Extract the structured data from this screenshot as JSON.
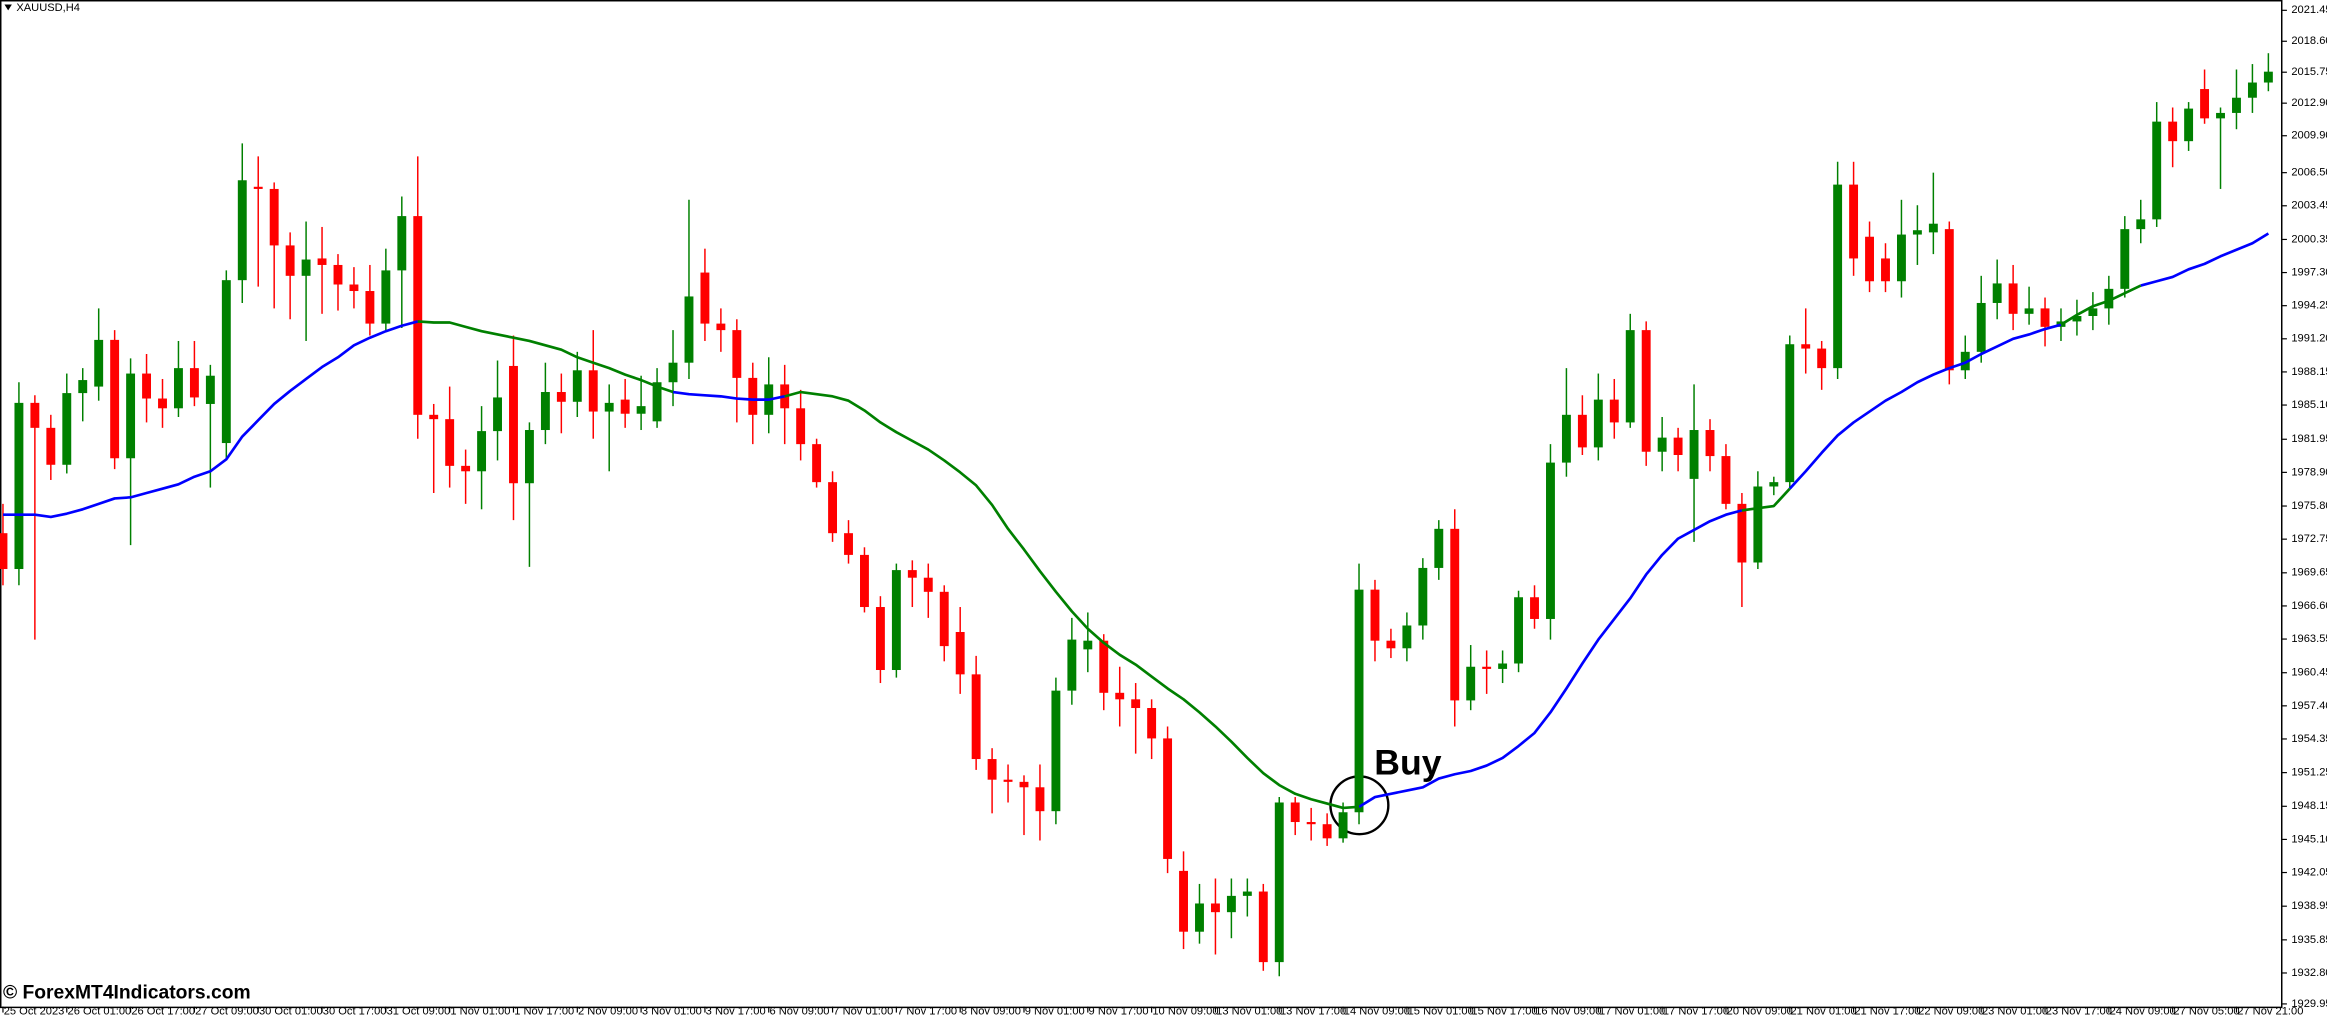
{
  "chart_data": {
    "type": "candlestick",
    "title": "XAUUSD,H4",
    "annotation": "Buy",
    "watermark": "© ForexMT4Indicators.com",
    "up_color": "#008000",
    "down_color": "#ff0000",
    "categories": [
      "25 Oct 2023",
      null,
      null,
      null,
      "26 Oct 01:00",
      null,
      null,
      null,
      "26 Oct 17:00",
      null,
      null,
      null,
      "27 Oct 09:00",
      null,
      null,
      null,
      "30 Oct 01:00",
      null,
      null,
      null,
      "30 Oct 17:00",
      null,
      null,
      null,
      "31 Oct 09:00",
      null,
      null,
      null,
      "1 Nov 01:00",
      null,
      null,
      null,
      "1 Nov 17:00",
      null,
      null,
      null,
      "2 Nov 09:00",
      null,
      null,
      null,
      "3 Nov 01:00",
      null,
      null,
      null,
      "3 Nov 17:00",
      null,
      null,
      null,
      "6 Nov 09:00",
      null,
      null,
      null,
      "7 Nov 01:00",
      null,
      null,
      null,
      "7 Nov 17:00",
      null,
      null,
      null,
      "8 Nov 09:00",
      null,
      null,
      null,
      "9 Nov 01:00",
      null,
      null,
      null,
      "9 Nov 17:00",
      null,
      null,
      null,
      "10 Nov 09:00",
      null,
      null,
      null,
      "13 Nov 01:00",
      null,
      null,
      null,
      "13 Nov 17:00",
      null,
      null,
      null,
      "14 Nov 09:00",
      null,
      null,
      null,
      "15 Nov 01:00",
      null,
      null,
      null,
      "15 Nov 17:00",
      null,
      null,
      null,
      "16 Nov 09:00",
      null,
      null,
      null,
      "17 Nov 01:00",
      null,
      null,
      null,
      "17 Nov 17:00",
      null,
      null,
      null,
      "20 Nov 09:00",
      null,
      null,
      null,
      "21 Nov 01:00",
      null,
      null,
      null,
      "21 Nov 17:00",
      null,
      null,
      null,
      "22 Nov 09:00",
      null,
      null,
      null,
      "23 Nov 01:00",
      null,
      null,
      null,
      "23 Nov 17:00",
      null,
      null,
      null,
      "24 Nov 09:00",
      null,
      null,
      null,
      "27 Nov 05:00",
      null,
      null,
      null,
      "27 Nov 21:00",
      null,
      null
    ],
    "open": [
      1973.3,
      1970.0,
      1985.3,
      1983.0,
      1979.6,
      1986.2,
      1986.8,
      1991.1,
      1980.2,
      1988.0,
      1985.7,
      1984.8,
      1988.5,
      1985.2,
      1981.6,
      1996.6,
      2005.2,
      2005.0,
      1999.8,
      1997.0,
      1998.6,
      1998.0,
      1996.2,
      1995.6,
      1992.6,
      1997.5,
      2002.5,
      1984.2,
      1983.8,
      1979.5,
      1979.0,
      1982.7,
      1988.7,
      1977.9,
      1982.8,
      1986.3,
      1985.4,
      1988.3,
      1984.5,
      1985.6,
      1984.3,
      1983.6,
      1987.2,
      1989.0,
      1997.3,
      1992.6,
      1992.0,
      1987.6,
      1984.2,
      1987.0,
      1984.8,
      1981.5,
      1978.0,
      1973.3,
      1971.3,
      1966.5,
      1960.7,
      1969.9,
      1969.2,
      1967.9,
      1964.2,
      1960.3,
      1952.5,
      1950.6,
      1950.4,
      1949.9,
      1947.7,
      1958.8,
      1962.6,
      1963.4,
      1958.6,
      1958.0,
      1957.2,
      1954.4,
      1942.2,
      1936.6,
      1939.2,
      1938.4,
      1939.9,
      1940.3,
      1933.8,
      1948.5,
      1946.7,
      1946.5,
      1945.2,
      1947.6,
      1968.1,
      1963.4,
      1962.7,
      1964.8,
      1970.1,
      1973.7,
      1957.9,
      1961.0,
      1960.8,
      1961.3,
      1967.4,
      1965.4,
      1979.8,
      1984.2,
      1981.2,
      1985.6,
      1983.5,
      1992.0,
      1980.8,
      1982.1,
      1978.3,
      1982.8,
      1980.4,
      1976.0,
      1970.6,
      1977.6,
      1978.0,
      1990.7,
      1990.3,
      1988.5,
      2005.4,
      2000.6,
      1998.6,
      1996.5,
      2000.8,
      2001.0,
      2001.3,
      1988.3,
      1990.0,
      1994.5,
      1996.3,
      1993.5,
      1994.0,
      1992.3,
      1992.8,
      1993.3,
      1994.0,
      1995.8,
      2001.3,
      2002.2,
      2011.2,
      2009.4,
      2014.2,
      2011.5,
      2012.0,
      2013.4,
      2014.8
    ],
    "high": [
      1976.0,
      1987.2,
      1986.0,
      1984.2,
      1988.0,
      1988.5,
      1994.0,
      1992.0,
      1989.4,
      1989.8,
      1987.5,
      1991.0,
      1991.0,
      1988.8,
      1997.5,
      2009.2,
      2008.0,
      2005.6,
      2001.0,
      2002.0,
      2001.5,
      1999.0,
      1997.8,
      1998.0,
      1999.5,
      2004.3,
      2008.0,
      1985.2,
      1986.8,
      1981.0,
      1985.0,
      1989.2,
      1991.5,
      1983.5,
      1989.0,
      1988.0,
      1990.0,
      1992.0,
      1987.0,
      1987.5,
      1987.8,
      1988.5,
      1992.0,
      2004.0,
      1999.5,
      1994.0,
      1993.0,
      1989.0,
      1989.5,
      1988.8,
      1986.5,
      1982.0,
      1979.0,
      1974.5,
      1972.0,
      1967.5,
      1970.5,
      1970.8,
      1970.5,
      1968.5,
      1966.5,
      1962.0,
      1953.5,
      1952.0,
      1951.0,
      1952.0,
      1960.0,
      1965.5,
      1966.0,
      1964.0,
      1961.0,
      1959.5,
      1958.0,
      1955.5,
      1944.0,
      1941.0,
      1941.5,
      1941.5,
      1941.5,
      1941.0,
      1949.0,
      1949.0,
      1948.0,
      1947.5,
      1948.5,
      1970.5,
      1969.0,
      1964.5,
      1966.0,
      1971.0,
      1974.5,
      1975.5,
      1963.0,
      1962.5,
      1962.5,
      1968.0,
      1968.5,
      1981.5,
      1988.5,
      1986.0,
      1988.0,
      1987.5,
      1993.5,
      1992.8,
      1984.0,
      1983.0,
      1987.0,
      1983.8,
      1981.5,
      1977.0,
      1979.0,
      1978.5,
      1991.5,
      1994.0,
      1991.0,
      2007.5,
      2007.5,
      2002.0,
      2000.0,
      2004.0,
      2003.5,
      2006.5,
      2002.0,
      1991.5,
      1997.0,
      1998.5,
      1998.0,
      1996.0,
      1995.0,
      1994.0,
      1994.8,
      1995.5,
      1997.0,
      2002.5,
      2004.0,
      2013.0,
      2012.5,
      2013.0,
      2016.0,
      2012.5,
      2016.0,
      2016.5,
      2017.5
    ],
    "low": [
      1968.5,
      1968.5,
      1963.5,
      1978.2,
      1978.8,
      1983.6,
      1985.5,
      1979.2,
      1972.2,
      1983.5,
      1983.0,
      1984.0,
      1985.0,
      1977.5,
      1980.0,
      1994.5,
      1996.0,
      1994.0,
      1993.0,
      1991.0,
      1993.5,
      1993.8,
      1994.0,
      1991.5,
      1992.0,
      1992.2,
      1982.0,
      1977.0,
      1977.5,
      1976.0,
      1975.5,
      1980.0,
      1974.5,
      1970.2,
      1981.5,
      1982.5,
      1984.0,
      1982.0,
      1979.0,
      1983.0,
      1982.8,
      1983.0,
      1985.0,
      1987.5,
      1991.0,
      1990.0,
      1983.5,
      1981.5,
      1982.5,
      1981.5,
      1980.0,
      1977.5,
      1972.5,
      1970.5,
      1966.0,
      1959.5,
      1960.0,
      1966.5,
      1965.5,
      1961.5,
      1958.5,
      1951.5,
      1947.5,
      1948.5,
      1945.5,
      1945.0,
      1946.5,
      1957.5,
      1960.5,
      1957.0,
      1955.5,
      1953.0,
      1952.5,
      1942.0,
      1935.0,
      1935.5,
      1934.5,
      1936.0,
      1938.0,
      1933.0,
      1932.5,
      1945.5,
      1945.0,
      1944.5,
      1944.8,
      1946.5,
      1961.5,
      1961.8,
      1961.5,
      1963.5,
      1969.0,
      1955.5,
      1957.0,
      1958.5,
      1959.5,
      1960.5,
      1964.5,
      1963.5,
      1978.5,
      1980.5,
      1980.0,
      1982.0,
      1983.0,
      1979.5,
      1979.0,
      1979.0,
      1972.5,
      1979.0,
      1975.5,
      1966.5,
      1970.0,
      1976.8,
      1977.5,
      1988.0,
      1986.5,
      1987.5,
      1997.0,
      1995.5,
      1995.5,
      1995.0,
      1998.0,
      1999.0,
      1987.0,
      1987.5,
      1989.0,
      1993.0,
      1992.0,
      1992.5,
      1990.5,
      1991.0,
      1991.5,
      1992.0,
      1992.5,
      1995.0,
      2000.0,
      2001.5,
      2007.0,
      2008.5,
      2011.0,
      2005.0,
      2010.5,
      2012.0,
      2014.0
    ],
    "close": [
      1970.0,
      1985.3,
      1983.0,
      1979.6,
      1986.2,
      1987.4,
      1991.1,
      1980.2,
      1988.0,
      1985.7,
      1984.8,
      1988.5,
      1985.8,
      1987.8,
      1996.6,
      2005.8,
      2005.0,
      1999.8,
      1997.0,
      1998.5,
      1998.0,
      1996.2,
      1995.6,
      1992.6,
      1997.5,
      2002.5,
      1984.2,
      1983.8,
      1979.5,
      1979.0,
      1982.7,
      1985.8,
      1977.9,
      1982.8,
      1986.3,
      1985.4,
      1988.3,
      1984.5,
      1985.3,
      1984.3,
      1985.0,
      1987.2,
      1989.0,
      1995.1,
      1992.6,
      1992.0,
      1987.6,
      1984.2,
      1987.0,
      1984.8,
      1981.5,
      1978.0,
      1973.3,
      1971.3,
      1966.5,
      1960.7,
      1969.9,
      1969.2,
      1967.9,
      1962.9,
      1960.3,
      1952.5,
      1950.6,
      1950.4,
      1949.9,
      1947.7,
      1958.8,
      1963.5,
      1963.4,
      1958.6,
      1958.0,
      1957.2,
      1954.4,
      1943.3,
      1936.6,
      1939.2,
      1938.4,
      1939.9,
      1940.3,
      1933.8,
      1948.5,
      1946.7,
      1946.5,
      1945.2,
      1947.6,
      1968.1,
      1963.4,
      1962.7,
      1964.8,
      1970.1,
      1973.7,
      1957.9,
      1961.0,
      1960.8,
      1961.3,
      1967.4,
      1965.4,
      1979.8,
      1984.2,
      1981.2,
      1985.6,
      1983.5,
      1992.0,
      1980.8,
      1982.1,
      1980.5,
      1982.8,
      1980.4,
      1976.0,
      1970.6,
      1977.6,
      1978.0,
      1990.7,
      1990.3,
      1988.5,
      2005.4,
      1998.6,
      1996.5,
      1996.5,
      2000.8,
      2001.2,
      2001.8,
      1988.3,
      1990.0,
      1994.5,
      1996.3,
      1993.5,
      1994.0,
      1992.3,
      1992.8,
      1993.3,
      1994.0,
      1995.8,
      2001.3,
      2002.2,
      2011.2,
      2009.4,
      2012.4,
      2011.5,
      2012.0,
      2013.4,
      2014.8,
      2015.8
    ],
    "series": [
      {
        "color": "#0000ff",
        "values": [
          1975.0,
          1975.0,
          1975.0,
          1974.8,
          1975.1,
          1975.5,
          1976.0,
          1976.5,
          1976.6,
          1977.0,
          1977.4,
          1977.8,
          1978.5,
          1979.0,
          1980.1,
          1982.2,
          1983.7,
          1985.2,
          1986.4,
          1987.5,
          1988.6,
          1989.5,
          1990.6,
          1991.3,
          1991.9,
          1992.4,
          1992.8,
          null,
          null,
          null,
          null,
          null,
          null,
          null,
          null,
          null,
          null,
          null,
          null,
          null,
          null,
          null,
          1986.3,
          1986.1,
          1986.0,
          1985.9,
          1985.7,
          1985.6,
          1985.6,
          1985.9,
          null,
          null,
          null,
          null,
          null,
          null,
          null,
          null,
          null,
          null,
          null,
          null,
          null,
          null,
          null,
          null,
          null,
          null,
          null,
          null,
          null,
          null,
          null,
          null,
          null,
          null,
          null,
          null,
          null,
          null,
          null,
          null,
          null,
          null,
          null,
          1948.1,
          1949.0,
          1949.3,
          1949.6,
          1949.9,
          1950.7,
          1951.1,
          1951.4,
          1951.9,
          1952.6,
          1953.7,
          1954.9,
          1956.8,
          1959.0,
          1961.3,
          1963.5,
          1965.4,
          1967.3,
          1969.5,
          1971.3,
          1972.8,
          1973.6,
          1974.4,
          1975.0,
          1975.4,
          null,
          null,
          1977.4,
          1979.0,
          1980.7,
          1982.3,
          1983.5,
          1984.5,
          1985.5,
          1986.3,
          1987.2,
          1987.9,
          1988.5,
          1989.0,
          1989.8,
          1990.5,
          1991.2,
          1991.6,
          1992.1,
          1992.5,
          null,
          null,
          null,
          null,
          1996.1,
          1996.5,
          1996.9,
          1997.6,
          1998.1,
          1998.8,
          1999.4,
          2000.0,
          2000.9
        ]
      },
      {
        "color": "#008000",
        "values": [
          null,
          null,
          null,
          null,
          null,
          null,
          null,
          null,
          null,
          null,
          null,
          null,
          null,
          null,
          null,
          null,
          null,
          null,
          null,
          null,
          null,
          null,
          null,
          null,
          null,
          null,
          1992.8,
          1992.7,
          1992.7,
          1992.3,
          1991.9,
          1991.6,
          1991.3,
          1991.0,
          1990.6,
          1990.2,
          1989.5,
          1989.0,
          1988.5,
          1987.9,
          1987.4,
          1986.8,
          1986.3,
          null,
          null,
          null,
          null,
          null,
          null,
          1985.9,
          1986.3,
          1986.1,
          1985.9,
          1985.5,
          1984.6,
          1983.5,
          1982.6,
          1981.8,
          1981.0,
          1980.0,
          1978.9,
          1977.7,
          1975.9,
          1973.7,
          1971.8,
          1969.8,
          1967.9,
          1966.1,
          1964.5,
          1963.2,
          1962.1,
          1961.2,
          1960.1,
          1959.0,
          1958.0,
          1956.8,
          1955.5,
          1954.1,
          1952.6,
          1951.2,
          1950.1,
          1949.3,
          1948.8,
          1948.4,
          1948.0,
          1948.1,
          null,
          null,
          null,
          null,
          null,
          null,
          null,
          null,
          null,
          null,
          null,
          null,
          null,
          null,
          null,
          null,
          null,
          null,
          null,
          null,
          null,
          null,
          null,
          1975.4,
          1975.6,
          1975.8,
          1977.4,
          null,
          null,
          null,
          null,
          null,
          null,
          null,
          null,
          null,
          null,
          null,
          null,
          null,
          null,
          null,
          null,
          1992.5,
          1993.4,
          1994.2,
          1994.7,
          1995.4,
          1996.1,
          null,
          null,
          null,
          null,
          null,
          null,
          null,
          null
        ]
      }
    ],
    "ylim": [
      1929.7,
      2022.4
    ],
    "yticks": [
      {
        "value": 2021.45,
        "label": "2021.45"
      },
      {
        "value": 2018.6,
        "label": "2018.60"
      },
      {
        "value": 2015.75,
        "label": "2015.75"
      },
      {
        "value": 2012.9,
        "label": "2012.90"
      },
      {
        "value": 2009.9,
        "label": "2009.90"
      },
      {
        "value": 2006.5,
        "label": "2006.50"
      },
      {
        "value": 2003.45,
        "label": "2003.45"
      },
      {
        "value": 2000.35,
        "label": "2000.35"
      },
      {
        "value": 1997.3,
        "label": "1997.30"
      },
      {
        "value": 1994.25,
        "label": "1994.25"
      },
      {
        "value": 1991.2,
        "label": "1991.20"
      },
      {
        "value": 1988.15,
        "label": "1988.15"
      },
      {
        "value": 1985.1,
        "label": "1985.10"
      },
      {
        "value": 1981.95,
        "label": "1981.95"
      },
      {
        "value": 1978.9,
        "label": "1978.90"
      },
      {
        "value": 1975.8,
        "label": "1975.80"
      },
      {
        "value": 1972.75,
        "label": "1972.75"
      },
      {
        "value": 1969.65,
        "label": "1969.65"
      },
      {
        "value": 1966.6,
        "label": "1966.60"
      },
      {
        "value": 1963.55,
        "label": "1963.55"
      },
      {
        "value": 1960.45,
        "label": "1960.45"
      },
      {
        "value": 1957.4,
        "label": "1957.40"
      },
      {
        "value": 1954.35,
        "label": "1954.35"
      },
      {
        "value": 1951.25,
        "label": "1951.25"
      },
      {
        "value": 1948.15,
        "label": "1948.15"
      },
      {
        "value": 1945.1,
        "label": "1945.10"
      },
      {
        "value": 1942.05,
        "label": "1942.05"
      },
      {
        "value": 1938.95,
        "label": "1938.95"
      },
      {
        "value": 1935.85,
        "label": "1935.85"
      },
      {
        "value": 1932.8,
        "label": "1932.80"
      },
      {
        "value": 1929.95,
        "label": "1929.95"
      }
    ]
  }
}
